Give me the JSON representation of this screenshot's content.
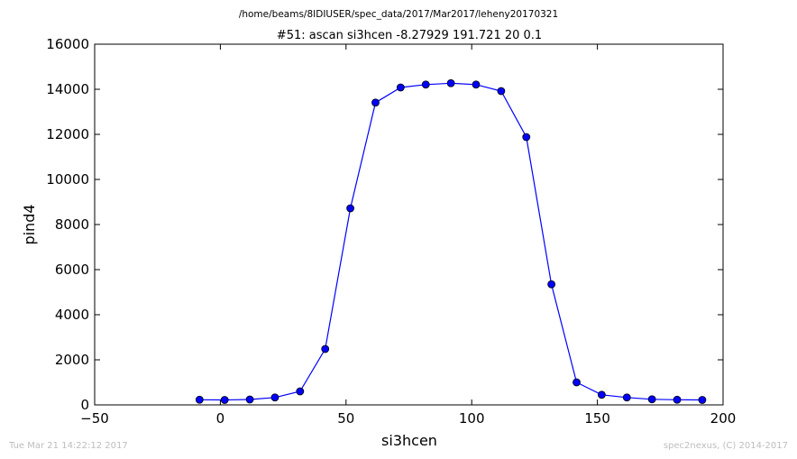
{
  "chart_data": {
    "type": "line",
    "supertitle": "/home/beams/8IDIUSER/spec_data/2017/Mar2017/leheny20170321",
    "title": "#51: ascan  si3hcen -8.27929 191.721  20 0.1",
    "xlabel": "si3hcen",
    "ylabel": "pind4",
    "xlim": [
      -50,
      200
    ],
    "ylim": [
      0,
      16000
    ],
    "xticks": [
      -50,
      0,
      50,
      100,
      150,
      200
    ],
    "xtick_labels": [
      "−50",
      "0",
      "50",
      "100",
      "150",
      "200"
    ],
    "yticks": [
      0,
      2000,
      4000,
      6000,
      8000,
      10000,
      12000,
      14000,
      16000
    ],
    "ytick_labels": [
      "0",
      "2000",
      "4000",
      "6000",
      "8000",
      "10000",
      "12000",
      "14000",
      "16000"
    ],
    "grid": false,
    "line_color": "#0000ff",
    "series": [
      {
        "x": [
          -8.28,
          1.72,
          11.72,
          21.72,
          31.72,
          41.72,
          51.72,
          61.72,
          71.72,
          81.72,
          91.72,
          101.72,
          111.72,
          121.72,
          131.72,
          141.72,
          151.72,
          161.72,
          171.72,
          181.72,
          191.72
        ],
        "y": [
          230,
          220,
          240,
          330,
          600,
          2480,
          8720,
          13410,
          14080,
          14210,
          14270,
          14210,
          13920,
          11880,
          5350,
          1000,
          450,
          330,
          250,
          230,
          220
        ]
      }
    ]
  },
  "footer": {
    "timestamp": "Tue Mar 21 14:22:12 2017",
    "credit": "spec2nexus, (C) 2014-2017"
  }
}
